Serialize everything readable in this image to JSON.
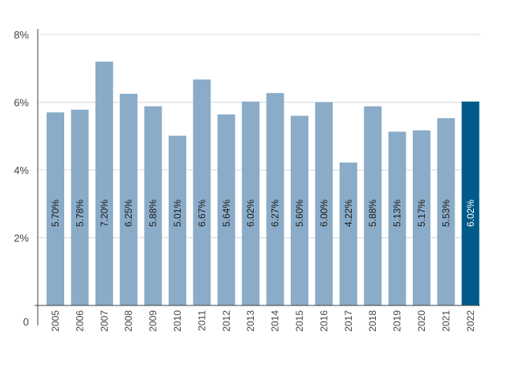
{
  "chart_data": {
    "type": "bar",
    "categories": [
      "2005",
      "2006",
      "2007",
      "2008",
      "2009",
      "2010",
      "2011",
      "2012",
      "2013",
      "2014",
      "2015",
      "2016",
      "2017",
      "2018",
      "2019",
      "2020",
      "2021",
      "2022"
    ],
    "values": [
      5.7,
      5.78,
      7.2,
      6.25,
      5.88,
      5.01,
      6.67,
      5.64,
      6.02,
      6.27,
      5.6,
      6.0,
      4.22,
      5.88,
      5.13,
      5.17,
      5.53,
      6.02
    ],
    "data_labels": [
      "5.70%",
      "5.78%",
      "7.20%",
      "6.25%",
      "5.88%",
      "5.01%",
      "6.67%",
      "5.64%",
      "6.02%",
      "6.27%",
      "5.60%",
      "6.00%",
      "4.22%",
      "5.88%",
      "5.13%",
      "5.17%",
      "5.53%",
      "6.02%"
    ],
    "title": "",
    "xlabel": "",
    "ylabel": "",
    "ylim": [
      0,
      8
    ],
    "yticks": [
      0,
      2,
      4,
      6,
      8
    ],
    "ytick_labels": [
      "0",
      "2%",
      "4%",
      "6%",
      "8%"
    ],
    "grid": true,
    "highlight_index": 17,
    "colors": {
      "bar": "#8aacc8",
      "highlight": "#005b8a",
      "grid": "#d9d9d9",
      "axis": "#444444",
      "label_dark": "#1a1a1a",
      "label_light": "#ffffff"
    }
  }
}
